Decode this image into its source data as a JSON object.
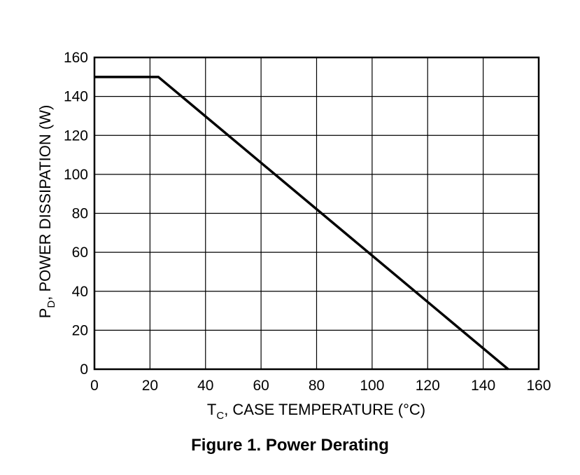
{
  "caption": "Figure 1. Power Derating",
  "chart_data": {
    "type": "line",
    "title": "",
    "xlabel": {
      "main": "T",
      "sub": "C",
      "rest": ", CASE TEMPERATURE (°C)"
    },
    "ylabel": {
      "main": "P",
      "sub": "D",
      "rest": ", POWER DISSIPATION (W)"
    },
    "xlim": [
      0,
      160
    ],
    "ylim": [
      0,
      160
    ],
    "x_ticks": [
      0,
      20,
      40,
      60,
      80,
      100,
      120,
      140,
      160
    ],
    "y_ticks": [
      0,
      20,
      40,
      60,
      80,
      100,
      120,
      140,
      160
    ],
    "grid": true,
    "series": [
      {
        "x": [
          0,
          23,
          149
        ],
        "y": [
          150,
          150,
          0
        ]
      }
    ]
  }
}
